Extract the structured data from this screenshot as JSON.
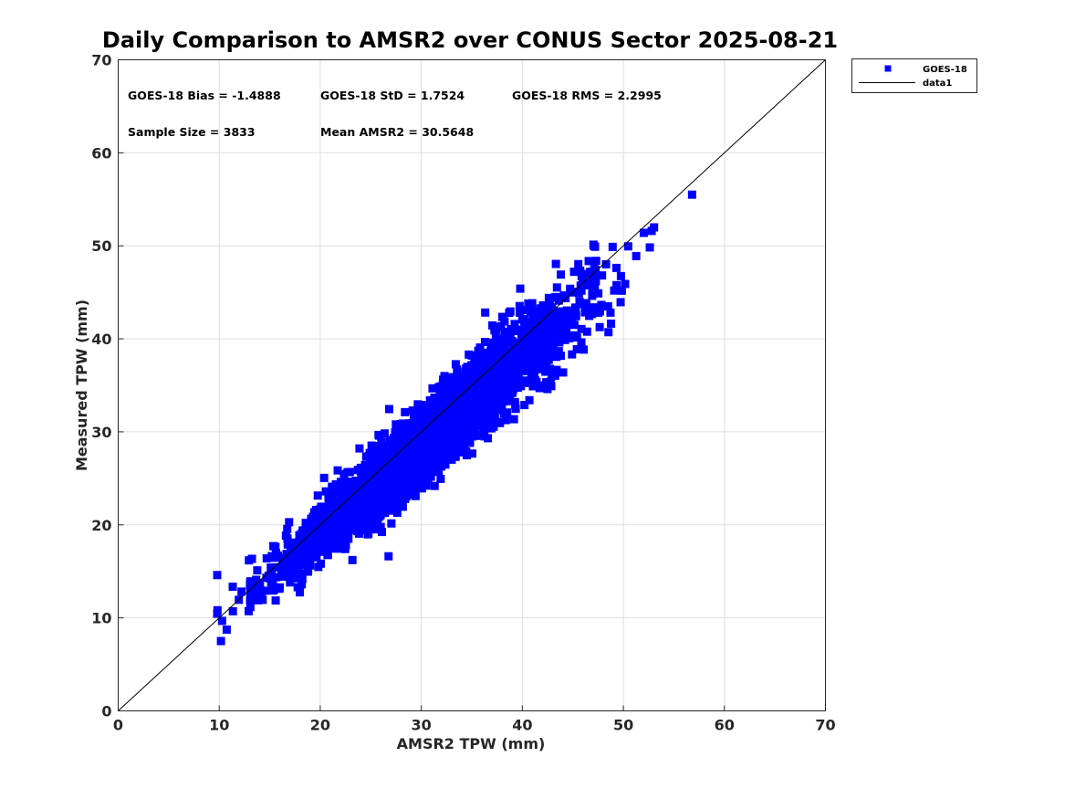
{
  "chart_data": {
    "type": "scatter",
    "title": "Daily Comparison to AMSR2 over CONUS Sector 2025-08-21",
    "xlabel": "AMSR2 TPW (mm)",
    "ylabel": "Measured TPW (mm)",
    "xlim": [
      0,
      70
    ],
    "ylim": [
      0,
      70
    ],
    "xticks": [
      0,
      10,
      20,
      30,
      40,
      50,
      60,
      70
    ],
    "yticks": [
      0,
      10,
      20,
      30,
      40,
      50,
      60,
      70
    ],
    "grid": true,
    "legend": {
      "position": "outside-top-right",
      "entries": [
        "GOES-18",
        "data1"
      ]
    },
    "stats": {
      "bias": "GOES-18 Bias = -1.4888",
      "std": "GOES-18 StD = 1.7524",
      "rms": "GOES-18 RMS = 2.2995",
      "sample_size": "Sample Size = 3833",
      "mean": "Mean AMSR2 = 30.5648"
    },
    "series": [
      {
        "name": "GOES-18",
        "marker": "square",
        "color": "#0000ff",
        "sample_size": 3833,
        "bias": -1.4888,
        "std": 1.7524,
        "rms": 2.2995,
        "mean_x": 30.5648,
        "x_range": [
          9.8,
          57
        ],
        "outliers": [
          [
            9.8,
            14.6
          ],
          [
            56.8,
            55.5
          ],
          [
            52.8,
            51.6
          ],
          [
            15.3,
            16.6
          ],
          [
            14.7,
            16.4
          ],
          [
            38.7,
            42.8
          ]
        ]
      },
      {
        "name": "data1",
        "type": "line",
        "color": "#000000",
        "x": [
          0,
          70
        ],
        "y": [
          0,
          70
        ]
      }
    ]
  }
}
